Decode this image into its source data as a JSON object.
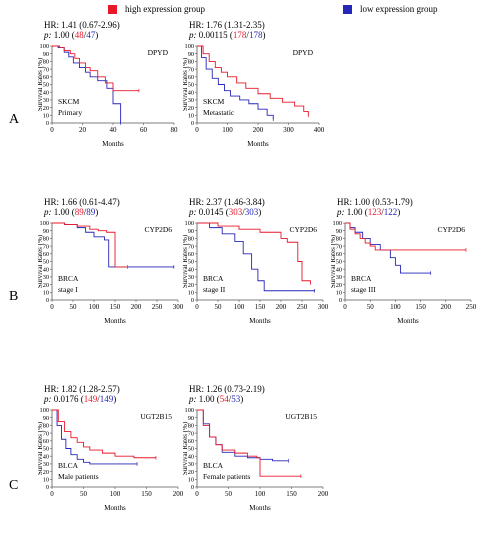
{
  "legend": {
    "high": "high expression group",
    "low": "low expression group"
  },
  "colors": {
    "high": "#e8182a",
    "low": "#2626b8"
  },
  "row_labels": [
    "A",
    "B",
    "C"
  ],
  "chart_data": [
    {
      "type": "line",
      "hr": "HR: 1.41 (0.67-2.96)",
      "p_prefix": "p:",
      "p_value": "1.00",
      "n_high": "48",
      "n_low": "47",
      "gene": "DPYD",
      "cohort": "SKCM",
      "subgroup": "Primary",
      "xlabel": "Months",
      "ylabel": "Survival Rates (%)",
      "xlim": [
        0,
        80
      ],
      "ylim": [
        0,
        100
      ],
      "xticks": [
        0,
        20,
        40,
        60,
        80
      ],
      "yticks": [
        0,
        10,
        20,
        30,
        40,
        50,
        60,
        70,
        80,
        90,
        100
      ],
      "series": [
        {
          "group": "high",
          "x": [
            0,
            5,
            8,
            12,
            15,
            18,
            22,
            25,
            30,
            35,
            40,
            50,
            57
          ],
          "y": [
            100,
            98,
            94,
            90,
            84,
            78,
            72,
            68,
            60,
            52,
            42,
            42,
            42
          ]
        },
        {
          "group": "low",
          "x": [
            0,
            4,
            8,
            11,
            14,
            18,
            22,
            25,
            30,
            36,
            40,
            43,
            45
          ],
          "y": [
            100,
            98,
            92,
            86,
            78,
            72,
            66,
            60,
            55,
            45,
            25,
            25,
            0
          ]
        }
      ]
    },
    {
      "type": "line",
      "hr": "HR: 1.76 (1.31-2.35)",
      "p_prefix": "p:",
      "p_value": "0.00115",
      "n_high": "178",
      "n_low": "178",
      "gene": "DPYD",
      "cohort": "SKCM",
      "subgroup": "Metastatic",
      "xlabel": "Months",
      "ylabel": "Survival Rates (%)",
      "xlim": [
        0,
        400
      ],
      "ylim": [
        0,
        100
      ],
      "xticks": [
        0,
        100,
        200,
        300,
        400
      ],
      "yticks": [
        0,
        10,
        20,
        30,
        40,
        50,
        60,
        70,
        80,
        90,
        100
      ],
      "series": [
        {
          "group": "high",
          "x": [
            0,
            20,
            40,
            60,
            80,
            100,
            130,
            160,
            200,
            240,
            280,
            320,
            350,
            365
          ],
          "y": [
            100,
            90,
            80,
            72,
            66,
            60,
            52,
            45,
            38,
            32,
            27,
            22,
            15,
            10
          ]
        },
        {
          "group": "low",
          "x": [
            0,
            15,
            30,
            50,
            70,
            90,
            110,
            140,
            170,
            200,
            230,
            250
          ],
          "y": [
            100,
            85,
            70,
            58,
            50,
            42,
            35,
            30,
            25,
            18,
            10,
            5
          ]
        }
      ]
    },
    {
      "type": "line",
      "hr": "HR: 1.66 (0.61-4.47)",
      "p_prefix": "p:",
      "p_value": "1.00",
      "n_high": "89",
      "n_low": "89",
      "gene": "CYP2D6",
      "cohort": "BRCA",
      "subgroup": "stage I",
      "xlabel": "Months",
      "ylabel": "Survival Rates (%)",
      "xlim": [
        0,
        300
      ],
      "ylim": [
        0,
        100
      ],
      "xticks": [
        0,
        50,
        100,
        150,
        200,
        250,
        300
      ],
      "yticks": [
        0,
        10,
        20,
        30,
        40,
        50,
        60,
        70,
        80,
        90,
        100
      ],
      "series": [
        {
          "group": "high",
          "x": [
            0,
            30,
            60,
            90,
            110,
            130,
            150,
            180
          ],
          "y": [
            100,
            98,
            96,
            92,
            90,
            88,
            43,
            43
          ]
        },
        {
          "group": "low",
          "x": [
            0,
            30,
            60,
            80,
            100,
            125,
            135,
            200,
            290
          ],
          "y": [
            100,
            98,
            94,
            88,
            82,
            78,
            43,
            43,
            43
          ]
        }
      ]
    },
    {
      "type": "line",
      "hr": "HR: 2.37 (1.46-3.84)",
      "p_prefix": "p:",
      "p_value": "0.0145",
      "n_high": "303",
      "n_low": "303",
      "gene": "CYP2D6",
      "cohort": "BRCA",
      "subgroup": "stage II",
      "xlabel": "Months",
      "ylabel": "Survival Rates (%)",
      "xlim": [
        0,
        300
      ],
      "ylim": [
        0,
        100
      ],
      "xticks": [
        0,
        50,
        100,
        150,
        200,
        250,
        300
      ],
      "yticks": [
        0,
        10,
        20,
        30,
        40,
        50,
        60,
        70,
        80,
        90,
        100
      ],
      "series": [
        {
          "group": "high",
          "x": [
            0,
            50,
            100,
            150,
            200,
            215,
            240,
            250,
            270
          ],
          "y": [
            100,
            96,
            92,
            88,
            80,
            75,
            50,
            25,
            22
          ]
        },
        {
          "group": "low",
          "x": [
            0,
            30,
            60,
            90,
            110,
            130,
            145,
            160,
            200,
            280
          ],
          "y": [
            100,
            94,
            86,
            76,
            60,
            40,
            25,
            12,
            12,
            12
          ]
        }
      ]
    },
    {
      "type": "line",
      "hr": "HR: 1.00 (0.53-1.79)",
      "p_prefix": "p:",
      "p_value": "1.00",
      "n_high": "123",
      "n_low": "122",
      "gene": "CYP2D6",
      "cohort": "BRCA",
      "subgroup": "stage III",
      "xlabel": "Months",
      "ylabel": "Survival Rates (%)",
      "xlim": [
        0,
        250
      ],
      "ylim": [
        0,
        100
      ],
      "xticks": [
        0,
        50,
        100,
        150,
        200,
        250
      ],
      "yticks": [
        0,
        10,
        20,
        30,
        40,
        50,
        60,
        70,
        80,
        90,
        100
      ],
      "series": [
        {
          "group": "high",
          "x": [
            0,
            10,
            20,
            30,
            40,
            50,
            60,
            100,
            150,
            240
          ],
          "y": [
            100,
            92,
            86,
            80,
            74,
            70,
            65,
            65,
            65,
            65
          ]
        },
        {
          "group": "low",
          "x": [
            0,
            10,
            20,
            35,
            50,
            70,
            90,
            100,
            110,
            170
          ],
          "y": [
            100,
            94,
            88,
            80,
            72,
            65,
            55,
            45,
            35,
            35
          ]
        }
      ]
    },
    {
      "type": "line",
      "hr": "HR: 1.82 (1.28-2.57)",
      "p_prefix": "p:",
      "p_value": "0.0176",
      "n_high": "149",
      "n_low": "149",
      "gene": "UGT2B15",
      "cohort": "BLCA",
      "subgroup": "Male patients",
      "xlabel": "Months",
      "ylabel": "Survival Rates (%)",
      "xlim": [
        0,
        200
      ],
      "ylim": [
        0,
        100
      ],
      "xticks": [
        0,
        50,
        100,
        150,
        200
      ],
      "yticks": [
        0,
        10,
        20,
        30,
        40,
        50,
        60,
        70,
        80,
        90,
        100
      ],
      "series": [
        {
          "group": "high",
          "x": [
            0,
            10,
            20,
            30,
            40,
            50,
            60,
            80,
            100,
            130,
            165
          ],
          "y": [
            100,
            85,
            72,
            64,
            58,
            52,
            48,
            44,
            40,
            38,
            38
          ]
        },
        {
          "group": "low",
          "x": [
            0,
            8,
            15,
            22,
            30,
            40,
            50,
            60,
            80,
            100,
            135
          ],
          "y": [
            100,
            80,
            62,
            50,
            42,
            36,
            32,
            30,
            30,
            30,
            30
          ]
        }
      ]
    },
    {
      "type": "line",
      "hr": "HR: 1.26 (0.73-2.19)",
      "p_prefix": "p:",
      "p_value": "1.00",
      "n_high": "54",
      "n_low": "53",
      "gene": "UGT2B15",
      "cohort": "BLCA",
      "subgroup": "Female patients",
      "xlabel": "Months",
      "ylabel": "Survival Rates (%)",
      "xlim": [
        0,
        200
      ],
      "ylim": [
        0,
        100
      ],
      "xticks": [
        0,
        50,
        100,
        150,
        200
      ],
      "yticks": [
        0,
        10,
        20,
        30,
        40,
        50,
        60,
        70,
        80,
        90,
        100
      ],
      "series": [
        {
          "group": "high",
          "x": [
            0,
            10,
            20,
            30,
            40,
            60,
            80,
            95,
            100,
            165
          ],
          "y": [
            100,
            80,
            65,
            55,
            48,
            44,
            40,
            38,
            14,
            14
          ]
        },
        {
          "group": "low",
          "x": [
            0,
            10,
            20,
            30,
            40,
            60,
            80,
            100,
            120,
            145
          ],
          "y": [
            100,
            82,
            65,
            55,
            45,
            40,
            38,
            36,
            34,
            34
          ]
        }
      ]
    }
  ]
}
